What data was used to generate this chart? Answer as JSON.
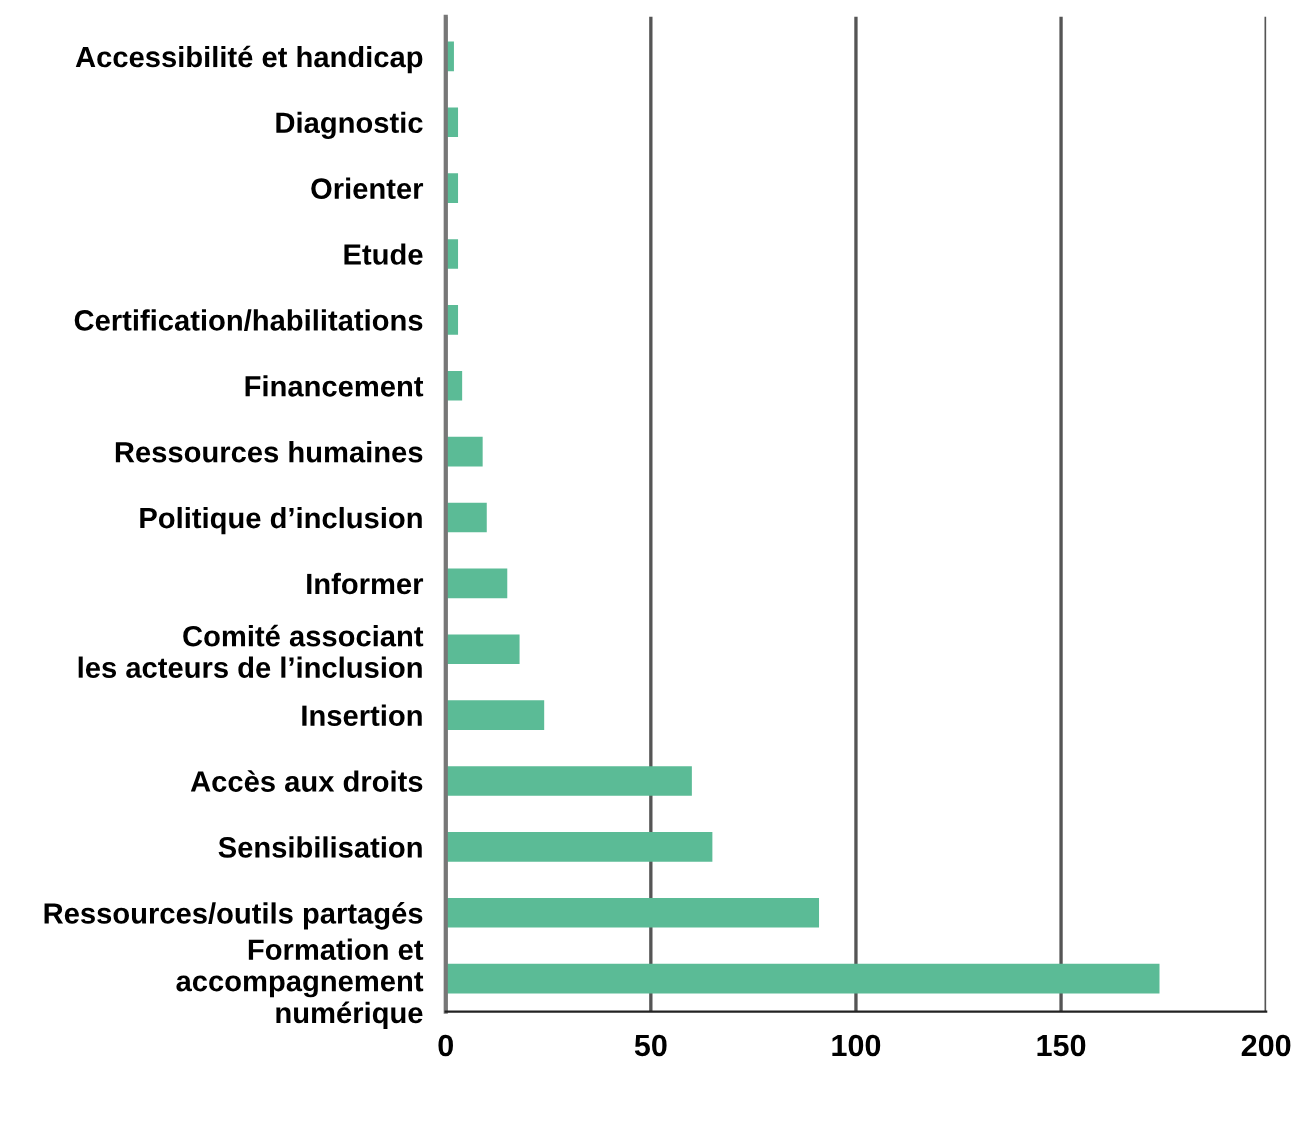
{
  "chart_data": {
    "type": "bar",
    "orientation": "horizontal",
    "categories": [
      "Accessibilité et handicap",
      "Diagnostic",
      "Orienter",
      "Etude",
      "Certification/habilitations",
      "Financement",
      "Ressources humaines",
      "Politique d’inclusion",
      "Informer",
      "Comité associant\nles acteurs de l’inclusion",
      "Insertion",
      "Accès aux droits",
      "Sensibilisation",
      "Ressources/outils partagés",
      "Formation et\naccompagnement\nnumérique"
    ],
    "values": [
      2,
      3,
      3,
      3,
      3,
      4,
      9,
      10,
      15,
      18,
      24,
      60,
      65,
      91,
      174
    ],
    "color": "#5bbb96",
    "xlim": [
      0,
      200
    ],
    "xticks": [
      0,
      50,
      100,
      150,
      200
    ],
    "grid": "x",
    "legend": false
  }
}
